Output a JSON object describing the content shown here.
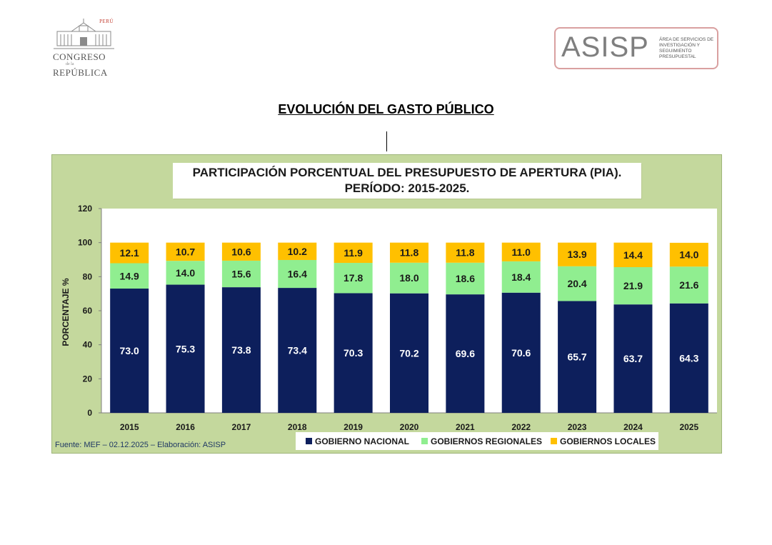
{
  "header": {
    "congreso_logo": {
      "country": "PERÚ",
      "line1": "CONGRESO",
      "line2": "de la",
      "line3": "REPÚBLICA"
    },
    "asisp_logo": {
      "acronym": "ASISP",
      "subtitle": "ÁREA DE SERVICIOS DE INVESTIGACIÓN Y SEGUIMIENTO PRESUPUESTAL"
    }
  },
  "page_title": "EVOLUCIÓN DEL GASTO PÚBLICO",
  "source": "Fuente:  MEF  – 02.12.2025 – Elaboración: ASISP",
  "colors": {
    "nacional": "#0d1f5c",
    "regionales": "#90ee90",
    "locales": "#ffc000",
    "panel": "#c4d89d",
    "plot": "#ffffff"
  },
  "chart_data": {
    "type": "bar",
    "stacked": true,
    "title": "PARTICIPACIÓN PORCENTUAL DEL PRESUPUESTO DE APERTURA (PIA).",
    "subtitle": "PERÍODO: 2015-2025.",
    "xlabel": "",
    "ylabel": "PORCENTAJE %",
    "ylim": [
      0,
      120
    ],
    "yticks": [
      0,
      20,
      40,
      60,
      80,
      100,
      120
    ],
    "grid": false,
    "legend_position": "bottom",
    "categories": [
      "2015",
      "2016",
      "2017",
      "2018",
      "2019",
      "2020",
      "2021",
      "2022",
      "2023",
      "2024",
      "2025"
    ],
    "series": [
      {
        "name": "GOBIERNO NACIONAL",
        "values": [
          73.0,
          75.3,
          73.8,
          73.4,
          70.3,
          70.2,
          69.6,
          70.6,
          65.7,
          63.7,
          64.3
        ]
      },
      {
        "name": "GOBIERNOS REGIONALES",
        "values": [
          14.9,
          14.0,
          15.6,
          16.4,
          17.8,
          18.0,
          18.6,
          18.4,
          20.4,
          21.9,
          21.6
        ]
      },
      {
        "name": "GOBIERNOS LOCALES",
        "values": [
          12.1,
          10.7,
          10.6,
          10.2,
          11.9,
          11.8,
          11.8,
          11.0,
          13.9,
          14.4,
          14.0
        ]
      }
    ]
  }
}
